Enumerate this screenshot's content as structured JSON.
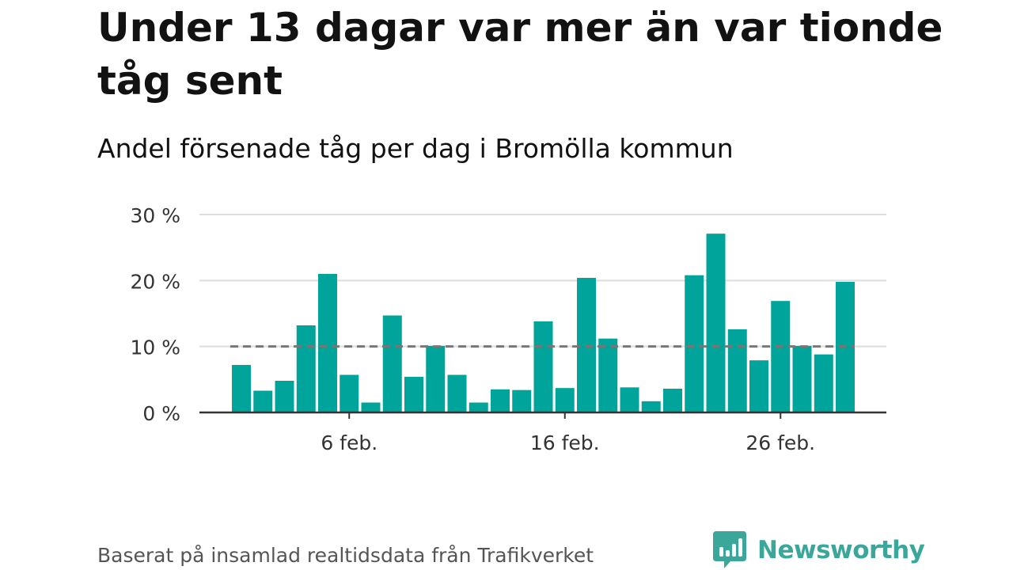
{
  "title": "Under 13 dagar var mer än var tionde tåg sent",
  "subtitle": "Andel försenade tåg per dag i Bromölla kommun",
  "footer": "Baserat på insamlad realtidsdata från Trafikverket",
  "brand": {
    "name": "Newsworthy",
    "icon": "newsworthy-logo-icon",
    "color": "#3aa79a"
  },
  "colors": {
    "bar": "#00a49a",
    "reference_line": "#777777",
    "grid": "#dddddd",
    "axis": "#333333"
  },
  "chart_data": {
    "type": "bar",
    "x_tick_labels": [
      {
        "label": "6 feb.",
        "day": 6
      },
      {
        "label": "16 feb.",
        "day": 16
      },
      {
        "label": "26 feb.",
        "day": 26
      }
    ],
    "y_tick_labels": [
      "0 %",
      "10 %",
      "20 %",
      "30 %"
    ],
    "ylim": [
      0,
      30
    ],
    "y_ticks": [
      0,
      10,
      20,
      30
    ],
    "reference_line": 10,
    "grid": true,
    "x": [
      1,
      2,
      3,
      4,
      5,
      6,
      7,
      8,
      9,
      10,
      11,
      12,
      13,
      14,
      15,
      16,
      17,
      18,
      19,
      20,
      21,
      22,
      23,
      24,
      25,
      26,
      27,
      28,
      29
    ],
    "values": [
      7.2,
      3.3,
      4.8,
      13.2,
      21.0,
      5.7,
      1.5,
      14.7,
      5.4,
      10.1,
      5.7,
      1.5,
      3.5,
      3.4,
      13.8,
      3.7,
      20.4,
      11.2,
      3.8,
      1.7,
      3.6,
      20.8,
      27.1,
      12.6,
      7.9,
      16.9,
      10.1,
      8.8,
      19.8
    ]
  }
}
